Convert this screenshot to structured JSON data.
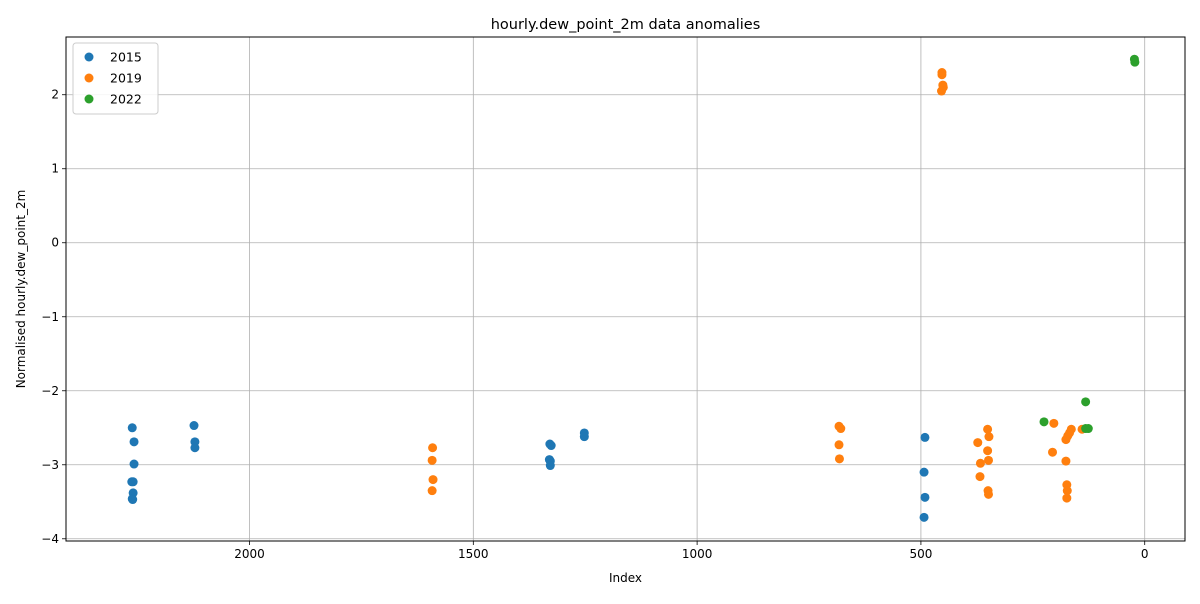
{
  "chart_data": {
    "type": "scatter",
    "title": "hourly.dew_point_2m data anomalies",
    "xlabel": "Index",
    "ylabel": "Normalised hourly.dew_point_2m",
    "xlim": [
      2410,
      -90
    ],
    "ylim": [
      -4.03,
      2.78
    ],
    "x_inverted": true,
    "grid": true,
    "legend_position": "top-left",
    "x_ticks": [
      2000,
      1500,
      1000,
      500,
      0
    ],
    "y_ticks": [
      -4,
      -3,
      -2,
      -1,
      0,
      1,
      2
    ],
    "series": [
      {
        "name": "2015",
        "color": "#1f77b4",
        "points": [
          [
            2262,
            -2.5
          ],
          [
            2258,
            -2.69
          ],
          [
            2258,
            -2.99
          ],
          [
            2263,
            -3.23
          ],
          [
            2260,
            -3.23
          ],
          [
            2260,
            -3.38
          ],
          [
            2262,
            -3.46
          ],
          [
            2261,
            -3.47
          ],
          [
            2124,
            -2.47
          ],
          [
            2122,
            -2.69
          ],
          [
            2122,
            -2.77
          ],
          [
            1329,
            -2.72
          ],
          [
            1326,
            -2.74
          ],
          [
            1330,
            -2.93
          ],
          [
            1328,
            -2.95
          ],
          [
            1328,
            -3.01
          ],
          [
            1252,
            -2.57
          ],
          [
            1252,
            -2.62
          ],
          [
            491,
            -2.63
          ],
          [
            493,
            -3.1
          ],
          [
            491,
            -3.44
          ],
          [
            493,
            -3.71
          ]
        ]
      },
      {
        "name": "2019",
        "color": "#ff7f0e",
        "points": [
          [
            1591,
            -2.77
          ],
          [
            1592,
            -2.94
          ],
          [
            1590,
            -3.2
          ],
          [
            1592,
            -3.35
          ],
          [
            683,
            -2.48
          ],
          [
            679,
            -2.51
          ],
          [
            683,
            -2.73
          ],
          [
            682,
            -2.92
          ],
          [
            454,
            2.05
          ],
          [
            450,
            2.1
          ],
          [
            451,
            2.13
          ],
          [
            453,
            2.27
          ],
          [
            453,
            2.3
          ],
          [
            373,
            -2.7
          ],
          [
            367,
            -2.98
          ],
          [
            368,
            -3.16
          ],
          [
            351,
            -2.52
          ],
          [
            348,
            -2.62
          ],
          [
            351,
            -2.81
          ],
          [
            349,
            -2.94
          ],
          [
            350,
            -3.35
          ],
          [
            349,
            -3.4
          ],
          [
            203,
            -2.44
          ],
          [
            206,
            -2.83
          ],
          [
            164,
            -2.52
          ],
          [
            168,
            -2.57
          ],
          [
            172,
            -2.61
          ],
          [
            176,
            -2.66
          ],
          [
            176,
            -2.95
          ],
          [
            174,
            -3.27
          ],
          [
            173,
            -3.35
          ],
          [
            174,
            -3.45
          ],
          [
            140,
            -2.52
          ]
        ]
      },
      {
        "name": "2022",
        "color": "#2ca02c",
        "points": [
          [
            225,
            -2.42
          ],
          [
            132,
            -2.15
          ],
          [
            132,
            -2.51
          ],
          [
            126,
            -2.51
          ],
          [
            23,
            2.48
          ],
          [
            22,
            2.44
          ]
        ]
      }
    ]
  }
}
